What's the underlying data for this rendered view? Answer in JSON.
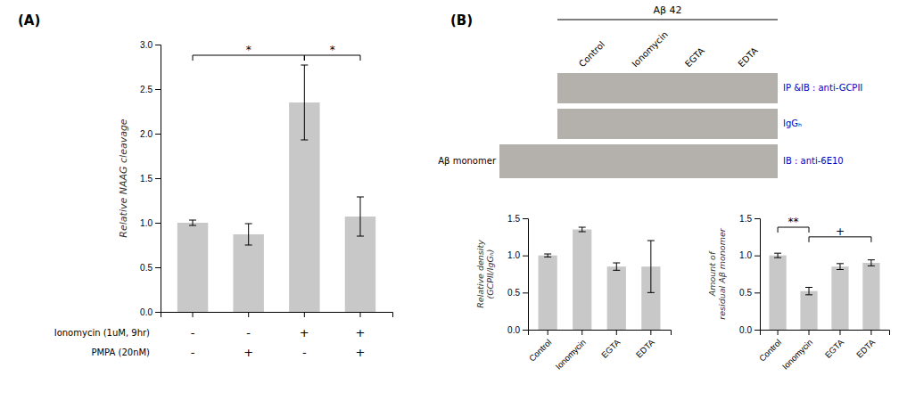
{
  "chart_data": [
    {
      "type": "bar",
      "title": "(A)",
      "categories": [
        null,
        null,
        null,
        null
      ],
      "values": [
        1.0,
        0.87,
        2.35,
        1.07
      ],
      "errors": [
        0.03,
        0.12,
        0.42,
        0.22
      ],
      "color": "#c8c8c8",
      "ylabel": "Relative NAAG cleavage",
      "ylim": [
        0,
        3.0
      ],
      "yticks": [
        {
          "value": 0,
          "label": "0.0"
        },
        0.5,
        {
          "value": 1.0,
          "label": "1.0"
        },
        1.5,
        {
          "value": 2.0,
          "label": "2.0"
        },
        2.5,
        {
          "value": 3.0,
          "label": "3.0"
        }
      ],
      "condition_rows": [
        {
          "label": "Ionomycin (1uM, 9hr)",
          "marks": [
            "-",
            "-",
            "+",
            "+"
          ]
        },
        {
          "label": "PMPA (20nM)",
          "marks": [
            "-",
            "+",
            "-",
            "+"
          ]
        }
      ],
      "annotations": [
        {
          "x1": 0,
          "x2": 2,
          "y": 2.88,
          "text": "*"
        },
        {
          "x1": 2,
          "x2": 3,
          "y": 2.88,
          "text": "*"
        }
      ]
    },
    {
      "type": "bar",
      "categories": [
        "Control",
        "Ionomycin",
        "EGTA",
        "EDTA"
      ],
      "values": [
        1.0,
        1.35,
        0.85,
        0.85
      ],
      "errors": [
        0.02,
        0.03,
        0.05,
        0.35
      ],
      "color": "#c8c8c8",
      "ylabel": "Relative density\n(GCPII/IgGₕ)",
      "ylim": [
        0,
        1.5
      ],
      "yticks": [
        {
          "value": 0,
          "label": "0.0"
        },
        0.5,
        {
          "value": 1.0,
          "label": "1.0"
        },
        1.5
      ]
    },
    {
      "type": "bar",
      "categories": [
        "Control",
        "Ionomycin",
        "EGTA",
        "EDTA"
      ],
      "values": [
        1.0,
        0.52,
        0.85,
        0.9
      ],
      "errors": [
        0.03,
        0.05,
        0.04,
        0.04
      ],
      "color": "#c8c8c8",
      "ylabel": "Amount of\nresidual Aβ monomer",
      "ylim": [
        0,
        1.5
      ],
      "yticks": [
        {
          "value": 0,
          "label": "0.0"
        },
        0.5,
        {
          "value": 1.0,
          "label": "1.0"
        },
        1.5
      ],
      "annotations": [
        {
          "x1": 0,
          "x2": 1,
          "y": 1.38,
          "text": "**"
        },
        {
          "x1": 1,
          "x2": 3,
          "y": 1.25,
          "text": "+"
        }
      ]
    },
    {
      "type": "blot",
      "title": "(B)",
      "subtitle": "Aβ 42",
      "categories": [
        "Control",
        "Ionomycin",
        "EGTA",
        "EDTA"
      ],
      "row_labels": [
        "IP &IB : anti-GCPII",
        "IgGₕ",
        "IB : anti-6E10"
      ],
      "annotations": [
        "Aβ monomer"
      ]
    }
  ]
}
